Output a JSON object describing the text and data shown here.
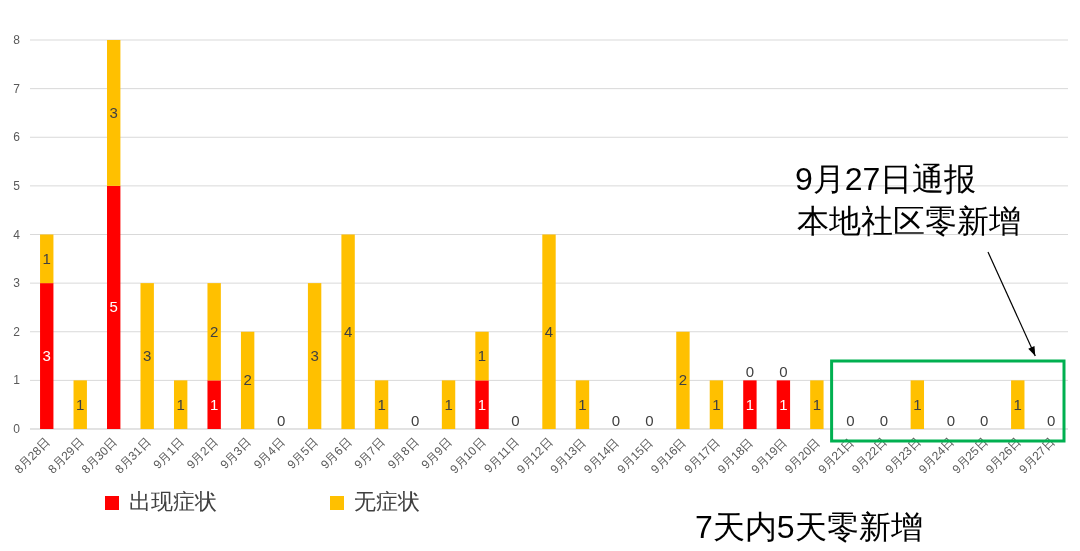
{
  "chart_data": {
    "type": "bar",
    "stacked": true,
    "categories": [
      "8月28日",
      "8月29日",
      "8月30日",
      "8月31日",
      "9月1日",
      "9月2日",
      "9月3日",
      "9月4日",
      "9月5日",
      "9月6日",
      "9月7日",
      "9月8日",
      "9月9日",
      "9月10日",
      "9月11日",
      "9月12日",
      "9月13日",
      "9月14日",
      "9月15日",
      "9月16日",
      "9月17日",
      "9月18日",
      "9月19日",
      "9月20日",
      "9月21日",
      "9月22日",
      "9月23日",
      "9月24日",
      "9月25日",
      "9月26日",
      "9月27日"
    ],
    "series": [
      {
        "name": "出现症状",
        "color": "#ff0000",
        "values": [
          3,
          0,
          5,
          0,
          0,
          1,
          0,
          0,
          0,
          0,
          0,
          0,
          0,
          1,
          0,
          0,
          0,
          0,
          0,
          0,
          0,
          1,
          1,
          0,
          0,
          0,
          0,
          0,
          0,
          0,
          0
        ],
        "value_labels": [
          "3",
          null,
          "5",
          null,
          null,
          "1",
          null,
          null,
          null,
          null,
          null,
          null,
          null,
          "1",
          null,
          null,
          null,
          null,
          null,
          null,
          null,
          "1",
          "1",
          null,
          null,
          null,
          null,
          null,
          null,
          null,
          null
        ]
      },
      {
        "name": "无症状",
        "color": "#ffc000",
        "values": [
          1,
          1,
          3,
          3,
          1,
          2,
          2,
          0,
          3,
          4,
          1,
          0,
          1,
          1,
          0,
          4,
          1,
          0,
          0,
          2,
          1,
          0,
          0,
          1,
          0,
          0,
          1,
          0,
          0,
          1,
          0
        ],
        "value_labels": [
          "1",
          "1",
          "3",
          "3",
          "1",
          "2",
          "2",
          "0",
          "3",
          "4",
          "1",
          "0",
          "1",
          "1",
          "0",
          "4",
          "1",
          "0",
          "0",
          "2",
          "1",
          "0",
          "0",
          "1",
          "0",
          "0",
          "1",
          "0",
          "0",
          "1",
          "0"
        ]
      }
    ],
    "ylim": [
      0,
      8
    ],
    "yticks": [
      0,
      1,
      2,
      3,
      4,
      5,
      6,
      7,
      8
    ],
    "grid": "y",
    "legend": "bottom left",
    "annotations": [
      "9月27日通报",
      "本地社区零新增",
      "7天内5天零新增"
    ]
  }
}
